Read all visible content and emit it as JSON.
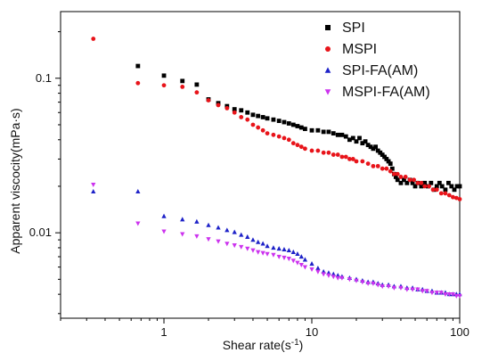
{
  "chart_data": {
    "type": "scatter",
    "title": "",
    "xlabel": "Shear rate(s",
    "xlabel_sup": "-1",
    "xlabel_end": ")",
    "ylabel": "Apparent viscocity(mPa·s)",
    "xscale": "log",
    "yscale": "log",
    "xlim": [
      0.2,
      100
    ],
    "ylim": [
      0.0028,
      0.27
    ],
    "x_ticks": [
      {
        "value": 1,
        "label": "1"
      },
      {
        "value": 10,
        "label": "10"
      },
      {
        "value": 100,
        "label": "100"
      }
    ],
    "y_ticks": [
      {
        "value": 0.01,
        "label": "0.01"
      },
      {
        "value": 0.1,
        "label": "0.1"
      }
    ],
    "grid": false,
    "legend_position": "top-right",
    "series": [
      {
        "name": "SPI",
        "color": "#000000",
        "marker": "square",
        "points": [
          [
            0.667,
            0.12
          ],
          [
            1.0,
            0.104
          ],
          [
            1.333,
            0.096
          ],
          [
            1.667,
            0.091
          ],
          [
            2.0,
            0.073
          ],
          [
            2.33,
            0.069
          ],
          [
            2.67,
            0.066
          ],
          [
            3.0,
            0.063
          ],
          [
            3.33,
            0.062
          ],
          [
            3.67,
            0.06
          ],
          [
            4.0,
            0.058
          ],
          [
            4.33,
            0.057
          ],
          [
            4.67,
            0.056
          ],
          [
            5.0,
            0.055
          ],
          [
            5.5,
            0.054
          ],
          [
            6.0,
            0.053
          ],
          [
            6.5,
            0.052
          ],
          [
            7.0,
            0.051
          ],
          [
            7.5,
            0.05
          ],
          [
            8.0,
            0.049
          ],
          [
            8.5,
            0.048
          ],
          [
            9.0,
            0.047
          ],
          [
            10.0,
            0.046
          ],
          [
            11.0,
            0.046
          ],
          [
            12.0,
            0.045
          ],
          [
            13.0,
            0.045
          ],
          [
            14.0,
            0.044
          ],
          [
            15.0,
            0.043
          ],
          [
            16.0,
            0.043
          ],
          [
            17.0,
            0.042
          ],
          [
            18.0,
            0.04
          ],
          [
            19.0,
            0.041
          ],
          [
            20.0,
            0.039
          ],
          [
            21.0,
            0.041
          ],
          [
            22.0,
            0.038
          ],
          [
            23.0,
            0.039
          ],
          [
            24.0,
            0.037
          ],
          [
            25.0,
            0.036
          ],
          [
            26.0,
            0.035
          ],
          [
            27.0,
            0.036
          ],
          [
            28.0,
            0.034
          ],
          [
            29.0,
            0.033
          ],
          [
            30.0,
            0.032
          ],
          [
            31.0,
            0.031
          ],
          [
            32.0,
            0.03
          ],
          [
            33.0,
            0.029
          ],
          [
            34.0,
            0.028
          ],
          [
            35.0,
            0.026
          ],
          [
            36.0,
            0.024
          ],
          [
            37.0,
            0.023
          ],
          [
            38.0,
            0.022
          ],
          [
            40.0,
            0.021
          ],
          [
            42.0,
            0.022
          ],
          [
            44.0,
            0.021
          ],
          [
            46.0,
            0.022
          ],
          [
            48.0,
            0.021
          ],
          [
            50.0,
            0.02
          ],
          [
            52.0,
            0.021
          ],
          [
            55.0,
            0.02
          ],
          [
            58.0,
            0.021
          ],
          [
            61.0,
            0.02
          ],
          [
            64.0,
            0.021
          ],
          [
            67.0,
            0.019
          ],
          [
            70.0,
            0.02
          ],
          [
            73.0,
            0.021
          ],
          [
            76.0,
            0.02
          ],
          [
            80.0,
            0.019
          ],
          [
            84.0,
            0.021
          ],
          [
            88.0,
            0.02
          ],
          [
            92.0,
            0.019
          ],
          [
            96.0,
            0.02
          ],
          [
            100.0,
            0.02
          ]
        ]
      },
      {
        "name": "MSPI",
        "color": "#e8141a",
        "marker": "circle",
        "points": [
          [
            0.333,
            0.18
          ],
          [
            0.667,
            0.093
          ],
          [
            1.0,
            0.09
          ],
          [
            1.333,
            0.088
          ],
          [
            1.667,
            0.081
          ],
          [
            2.0,
            0.072
          ],
          [
            2.33,
            0.067
          ],
          [
            2.67,
            0.064
          ],
          [
            3.0,
            0.06
          ],
          [
            3.33,
            0.056
          ],
          [
            3.67,
            0.054
          ],
          [
            4.0,
            0.05
          ],
          [
            4.33,
            0.048
          ],
          [
            4.67,
            0.046
          ],
          [
            5.0,
            0.044
          ],
          [
            5.5,
            0.043
          ],
          [
            6.0,
            0.042
          ],
          [
            6.5,
            0.041
          ],
          [
            7.0,
            0.04
          ],
          [
            7.5,
            0.038
          ],
          [
            8.0,
            0.037
          ],
          [
            8.5,
            0.036
          ],
          [
            9.0,
            0.035
          ],
          [
            10.0,
            0.034
          ],
          [
            11.0,
            0.034
          ],
          [
            12.0,
            0.033
          ],
          [
            13.0,
            0.033
          ],
          [
            14.0,
            0.032
          ],
          [
            15.0,
            0.032
          ],
          [
            16.0,
            0.031
          ],
          [
            17.0,
            0.031
          ],
          [
            18.0,
            0.03
          ],
          [
            19.0,
            0.03
          ],
          [
            20.0,
            0.029
          ],
          [
            22.0,
            0.029
          ],
          [
            24.0,
            0.028
          ],
          [
            26.0,
            0.027
          ],
          [
            28.0,
            0.027
          ],
          [
            30.0,
            0.026
          ],
          [
            32.0,
            0.026
          ],
          [
            34.0,
            0.025
          ],
          [
            36.0,
            0.024
          ],
          [
            38.0,
            0.024
          ],
          [
            40.0,
            0.023
          ],
          [
            43.0,
            0.023
          ],
          [
            46.0,
            0.022
          ],
          [
            49.0,
            0.022
          ],
          [
            52.0,
            0.021
          ],
          [
            55.0,
            0.021
          ],
          [
            58.0,
            0.02
          ],
          [
            62.0,
            0.02
          ],
          [
            66.0,
            0.019
          ],
          [
            70.0,
            0.019
          ],
          [
            75.0,
            0.018
          ],
          [
            80.0,
            0.018
          ],
          [
            85.0,
            0.0175
          ],
          [
            90.0,
            0.017
          ],
          [
            95.0,
            0.0168
          ],
          [
            100.0,
            0.0165
          ]
        ]
      },
      {
        "name": "SPI-FA(AM)",
        "color": "#1e22c8",
        "marker": "triangle-up",
        "points": [
          [
            0.333,
            0.0185
          ],
          [
            0.667,
            0.0185
          ],
          [
            1.0,
            0.0128
          ],
          [
            1.333,
            0.0122
          ],
          [
            1.667,
            0.0118
          ],
          [
            2.0,
            0.0112
          ],
          [
            2.33,
            0.0108
          ],
          [
            2.67,
            0.0104
          ],
          [
            3.0,
            0.0101
          ],
          [
            3.33,
            0.0097
          ],
          [
            3.67,
            0.0094
          ],
          [
            4.0,
            0.009
          ],
          [
            4.33,
            0.0087
          ],
          [
            4.67,
            0.0085
          ],
          [
            5.0,
            0.0082
          ],
          [
            5.5,
            0.008
          ],
          [
            6.0,
            0.0079
          ],
          [
            6.5,
            0.0078
          ],
          [
            7.0,
            0.0077
          ],
          [
            7.5,
            0.0075
          ],
          [
            8.0,
            0.0073
          ],
          [
            8.5,
            0.007
          ],
          [
            9.0,
            0.0067
          ],
          [
            10.0,
            0.0063
          ],
          [
            11.0,
            0.0059
          ],
          [
            12.0,
            0.0056
          ],
          [
            13.0,
            0.0055
          ],
          [
            14.0,
            0.0054
          ],
          [
            15.0,
            0.0053
          ],
          [
            16.0,
            0.0052
          ],
          [
            18.0,
            0.0051
          ],
          [
            20.0,
            0.005
          ],
          [
            22.0,
            0.0049
          ],
          [
            24.0,
            0.0048
          ],
          [
            26.0,
            0.0048
          ],
          [
            28.0,
            0.0047
          ],
          [
            30.0,
            0.0046
          ],
          [
            33.0,
            0.0046
          ],
          [
            36.0,
            0.0045
          ],
          [
            40.0,
            0.0045
          ],
          [
            44.0,
            0.0044
          ],
          [
            48.0,
            0.0044
          ],
          [
            52.0,
            0.0043
          ],
          [
            56.0,
            0.0043
          ],
          [
            60.0,
            0.0042
          ],
          [
            65.0,
            0.0042
          ],
          [
            70.0,
            0.0041
          ],
          [
            75.0,
            0.0041
          ],
          [
            80.0,
            0.0041
          ],
          [
            85.0,
            0.004
          ],
          [
            90.0,
            0.004
          ],
          [
            95.0,
            0.004
          ],
          [
            100.0,
            0.004
          ]
        ]
      },
      {
        "name": "MSPI-FA(AM)",
        "color": "#cc33ee",
        "marker": "triangle-down",
        "points": [
          [
            0.333,
            0.0205
          ],
          [
            0.667,
            0.0115
          ],
          [
            1.0,
            0.0102
          ],
          [
            1.333,
            0.0098
          ],
          [
            1.667,
            0.0095
          ],
          [
            2.0,
            0.0091
          ],
          [
            2.33,
            0.0088
          ],
          [
            2.67,
            0.0085
          ],
          [
            3.0,
            0.0083
          ],
          [
            3.33,
            0.0081
          ],
          [
            3.67,
            0.0079
          ],
          [
            4.0,
            0.0077
          ],
          [
            4.33,
            0.0075
          ],
          [
            4.67,
            0.0074
          ],
          [
            5.0,
            0.0073
          ],
          [
            5.5,
            0.0072
          ],
          [
            6.0,
            0.007
          ],
          [
            6.5,
            0.0069
          ],
          [
            7.0,
            0.0068
          ],
          [
            7.5,
            0.0066
          ],
          [
            8.0,
            0.0064
          ],
          [
            8.5,
            0.0062
          ],
          [
            9.0,
            0.006
          ],
          [
            10.0,
            0.0058
          ],
          [
            11.0,
            0.0056
          ],
          [
            12.0,
            0.0054
          ],
          [
            13.0,
            0.0053
          ],
          [
            14.0,
            0.0052
          ],
          [
            15.0,
            0.0051
          ],
          [
            16.0,
            0.0051
          ],
          [
            18.0,
            0.005
          ],
          [
            20.0,
            0.0049
          ],
          [
            22.0,
            0.0048
          ],
          [
            24.0,
            0.0047
          ],
          [
            26.0,
            0.0047
          ],
          [
            28.0,
            0.0046
          ],
          [
            30.0,
            0.0045
          ],
          [
            33.0,
            0.0045
          ],
          [
            36.0,
            0.0044
          ],
          [
            40.0,
            0.0044
          ],
          [
            44.0,
            0.0043
          ],
          [
            48.0,
            0.0043
          ],
          [
            52.0,
            0.0043
          ],
          [
            56.0,
            0.0042
          ],
          [
            60.0,
            0.0042
          ],
          [
            65.0,
            0.0041
          ],
          [
            70.0,
            0.0041
          ],
          [
            75.0,
            0.0041
          ],
          [
            80.0,
            0.004
          ],
          [
            85.0,
            0.004
          ],
          [
            90.0,
            0.004
          ],
          [
            95.0,
            0.0039
          ],
          [
            100.0,
            0.0039
          ]
        ]
      }
    ]
  }
}
